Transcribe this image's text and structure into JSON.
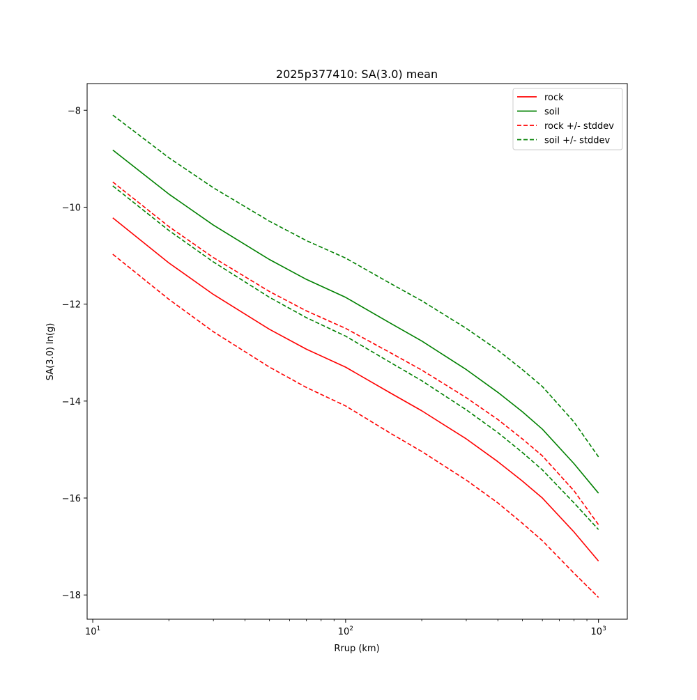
{
  "chart_data": {
    "type": "line",
    "title": "2025p377410: SA(3.0) mean",
    "xlabel": "Rrup (km)",
    "ylabel": "SA(3.0) ln(g)",
    "xscale": "log",
    "xlim": [
      9.5,
      1300
    ],
    "ylim": [
      -18.5,
      -7.45
    ],
    "x_major_ticks": [
      {
        "value": 10,
        "base": "10",
        "exp": "1"
      },
      {
        "value": 100,
        "base": "10",
        "exp": "2"
      },
      {
        "value": 1000,
        "base": "10",
        "exp": "3"
      }
    ],
    "y_ticks": [
      {
        "value": -8,
        "label": "−8"
      },
      {
        "value": -10,
        "label": "−10"
      },
      {
        "value": -12,
        "label": "−12"
      },
      {
        "value": -14,
        "label": "−14"
      },
      {
        "value": -16,
        "label": "−16"
      },
      {
        "value": -18,
        "label": "−18"
      }
    ],
    "grid": false,
    "legend_position": "top-right",
    "series": [
      {
        "name": "rock",
        "color": "#ff0000",
        "dashed": false,
        "x": [
          12,
          20,
          30,
          50,
          70,
          100,
          150,
          200,
          300,
          400,
          500,
          600,
          800,
          1000
        ],
        "y": [
          -10.22,
          -11.15,
          -11.8,
          -12.52,
          -12.93,
          -13.3,
          -13.83,
          -14.2,
          -14.78,
          -15.25,
          -15.65,
          -16.0,
          -16.7,
          -17.3
        ]
      },
      {
        "name": "soil",
        "color": "#008000",
        "dashed": false,
        "x": [
          12,
          20,
          30,
          50,
          70,
          100,
          150,
          200,
          300,
          400,
          500,
          600,
          800,
          1000
        ],
        "y": [
          -8.82,
          -9.73,
          -10.37,
          -11.08,
          -11.49,
          -11.86,
          -12.39,
          -12.76,
          -13.35,
          -13.82,
          -14.22,
          -14.58,
          -15.29,
          -15.9
        ]
      },
      {
        "name": "rock +/- stddev",
        "color": "#ff0000",
        "dashed": true,
        "x": [
          12,
          20,
          30,
          50,
          70,
          100,
          150,
          200,
          300,
          400,
          500,
          600,
          800,
          1000
        ],
        "y": [
          -9.48,
          -10.4,
          -11.04,
          -11.74,
          -12.14,
          -12.5,
          -13.0,
          -13.36,
          -13.93,
          -14.38,
          -14.78,
          -15.13,
          -15.85,
          -16.55
        ]
      },
      {
        "name": "",
        "color": "#ff0000",
        "dashed": true,
        "x": [
          12,
          20,
          30,
          50,
          70,
          100,
          150,
          200,
          300,
          400,
          500,
          600,
          800,
          1000
        ],
        "y": [
          -10.97,
          -11.9,
          -12.57,
          -13.3,
          -13.72,
          -14.1,
          -14.66,
          -15.04,
          -15.63,
          -16.1,
          -16.52,
          -16.88,
          -17.55,
          -18.05
        ]
      },
      {
        "name": "soil +/- stddev",
        "color": "#008000",
        "dashed": true,
        "x": [
          12,
          20,
          30,
          50,
          70,
          100,
          150,
          200,
          300,
          400,
          500,
          600,
          800,
          1000
        ],
        "y": [
          -8.1,
          -8.98,
          -9.6,
          -10.29,
          -10.69,
          -11.05,
          -11.57,
          -11.93,
          -12.5,
          -12.95,
          -13.35,
          -13.7,
          -14.43,
          -15.15
        ]
      },
      {
        "name": "",
        "color": "#008000",
        "dashed": true,
        "x": [
          12,
          20,
          30,
          50,
          70,
          100,
          150,
          200,
          300,
          400,
          500,
          600,
          800,
          1000
        ],
        "y": [
          -9.56,
          -10.48,
          -11.13,
          -11.86,
          -12.28,
          -12.66,
          -13.2,
          -13.58,
          -14.18,
          -14.65,
          -15.06,
          -15.42,
          -16.1,
          -16.65
        ]
      }
    ],
    "legend": [
      {
        "label": "rock",
        "color": "#ff0000",
        "dashed": false
      },
      {
        "label": "soil",
        "color": "#008000",
        "dashed": false
      },
      {
        "label": "rock +/- stddev",
        "color": "#ff0000",
        "dashed": true
      },
      {
        "label": "soil +/- stddev",
        "color": "#008000",
        "dashed": true
      }
    ]
  }
}
